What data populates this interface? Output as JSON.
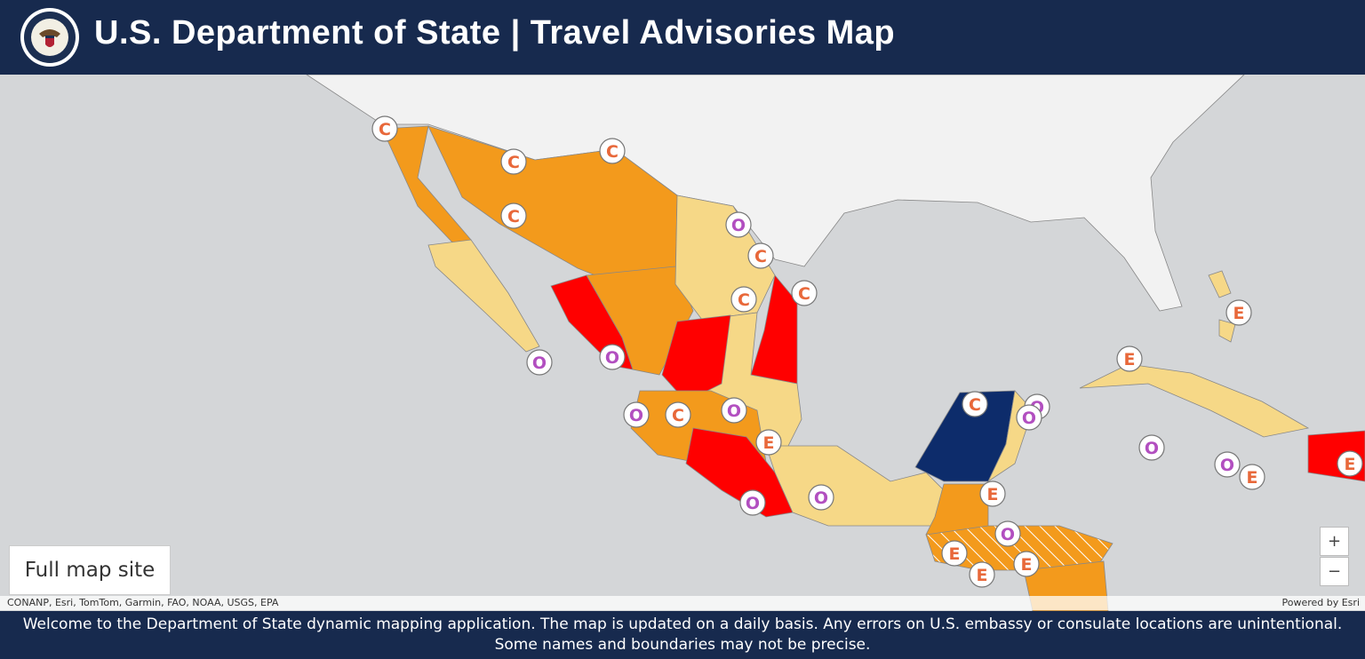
{
  "header": {
    "title": "U.S. Department of State | Travel Advisories Map"
  },
  "map": {
    "full_map_link": "Full map site",
    "zoom_in": "+",
    "zoom_out": "−",
    "attribution": "CONANP, Esri, TomTom, Garmin, FAO, NOAA, USGS, EPA",
    "powered_by": "Powered by Esri",
    "markers": [
      "C",
      "C",
      "C",
      "C",
      "O",
      "C",
      "C",
      "C",
      "E",
      "O",
      "O",
      "E",
      "O",
      "C",
      "O",
      "E",
      "C",
      "O",
      "O",
      "O",
      "O",
      "E",
      "E",
      "O",
      "O",
      "E",
      "O",
      "E",
      "E",
      "E"
    ]
  },
  "footer": {
    "lines": [
      "Welcome to the Department of State dynamic mapping application. The map is updated on a daily basis.  Any errors on U.S. embassy or consulate locations are unintentional.",
      "Some names and boundaries may not be precise."
    ]
  }
}
